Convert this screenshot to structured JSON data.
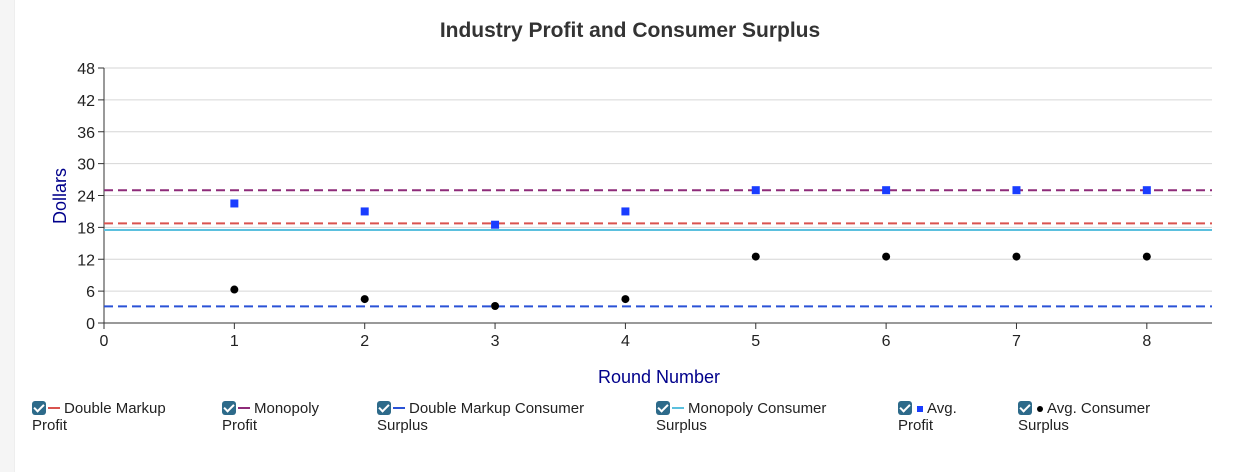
{
  "colors": {
    "double_markup_profit": "#d9534f",
    "monopoly_profit": "#8e2b79",
    "double_markup_cs": "#2a52d6",
    "monopoly_cs": "#5bc0de",
    "avg_profit": "#1a3dff",
    "avg_cs": "#000000",
    "axis_title": "#00008b",
    "grid": "#d6d6d6"
  },
  "legend": [
    {
      "label": "Double Markup Profit",
      "swatch": "line",
      "color": "#d9534f",
      "checked": true
    },
    {
      "label": "Monopoly Profit",
      "swatch": "line",
      "color": "#8e2b79",
      "checked": true
    },
    {
      "label": "Double Markup Consumer Surplus",
      "swatch": "line",
      "color": "#2a52d6",
      "checked": true
    },
    {
      "label": "Monopoly Consumer Surplus",
      "swatch": "line",
      "color": "#5bc0de",
      "checked": true
    },
    {
      "label": "Avg. Profit",
      "swatch": "square",
      "color": "#1a3dff",
      "checked": true
    },
    {
      "label": "Avg. Consumer Surplus",
      "swatch": "dot",
      "color": "#000000",
      "checked": true
    }
  ],
  "chart_data": {
    "type": "scatter",
    "title": "Industry Profit and Consumer Surplus",
    "xlabel": "Round Number",
    "ylabel": "Dollars",
    "xlim": [
      0,
      8.5
    ],
    "ylim": [
      0,
      48
    ],
    "xticks": [
      0,
      1,
      2,
      3,
      4,
      5,
      6,
      7,
      8
    ],
    "yticks": [
      0,
      6,
      12,
      18,
      24,
      30,
      36,
      42,
      48
    ],
    "grid": "horizontal",
    "legend_position": "bottom",
    "reference_lines": [
      {
        "name": "Double Markup Profit",
        "y": 18.75,
        "color": "#d9534f",
        "style": "dashed"
      },
      {
        "name": "Monopoly Profit",
        "y": 25,
        "color": "#8e2b79",
        "style": "dashed"
      },
      {
        "name": "Double Markup Consumer Surplus",
        "y": 3.125,
        "color": "#2a52d6",
        "style": "dashed"
      },
      {
        "name": "Monopoly Consumer Surplus",
        "y": 17.5,
        "color": "#5bc0de",
        "style": "solid"
      }
    ],
    "series": [
      {
        "name": "Avg. Profit",
        "marker": "square",
        "color": "#1a3dff",
        "x": [
          1,
          2,
          3,
          4,
          5,
          6,
          7,
          8
        ],
        "y": [
          22.5,
          21,
          18.5,
          21,
          25,
          25,
          25,
          25
        ]
      },
      {
        "name": "Avg. Consumer Surplus",
        "marker": "dot",
        "color": "#000000",
        "x": [
          1,
          2,
          3,
          4,
          5,
          6,
          7,
          8
        ],
        "y": [
          6.3,
          4.5,
          3.2,
          4.5,
          12.5,
          12.5,
          12.5,
          12.5
        ]
      }
    ]
  }
}
